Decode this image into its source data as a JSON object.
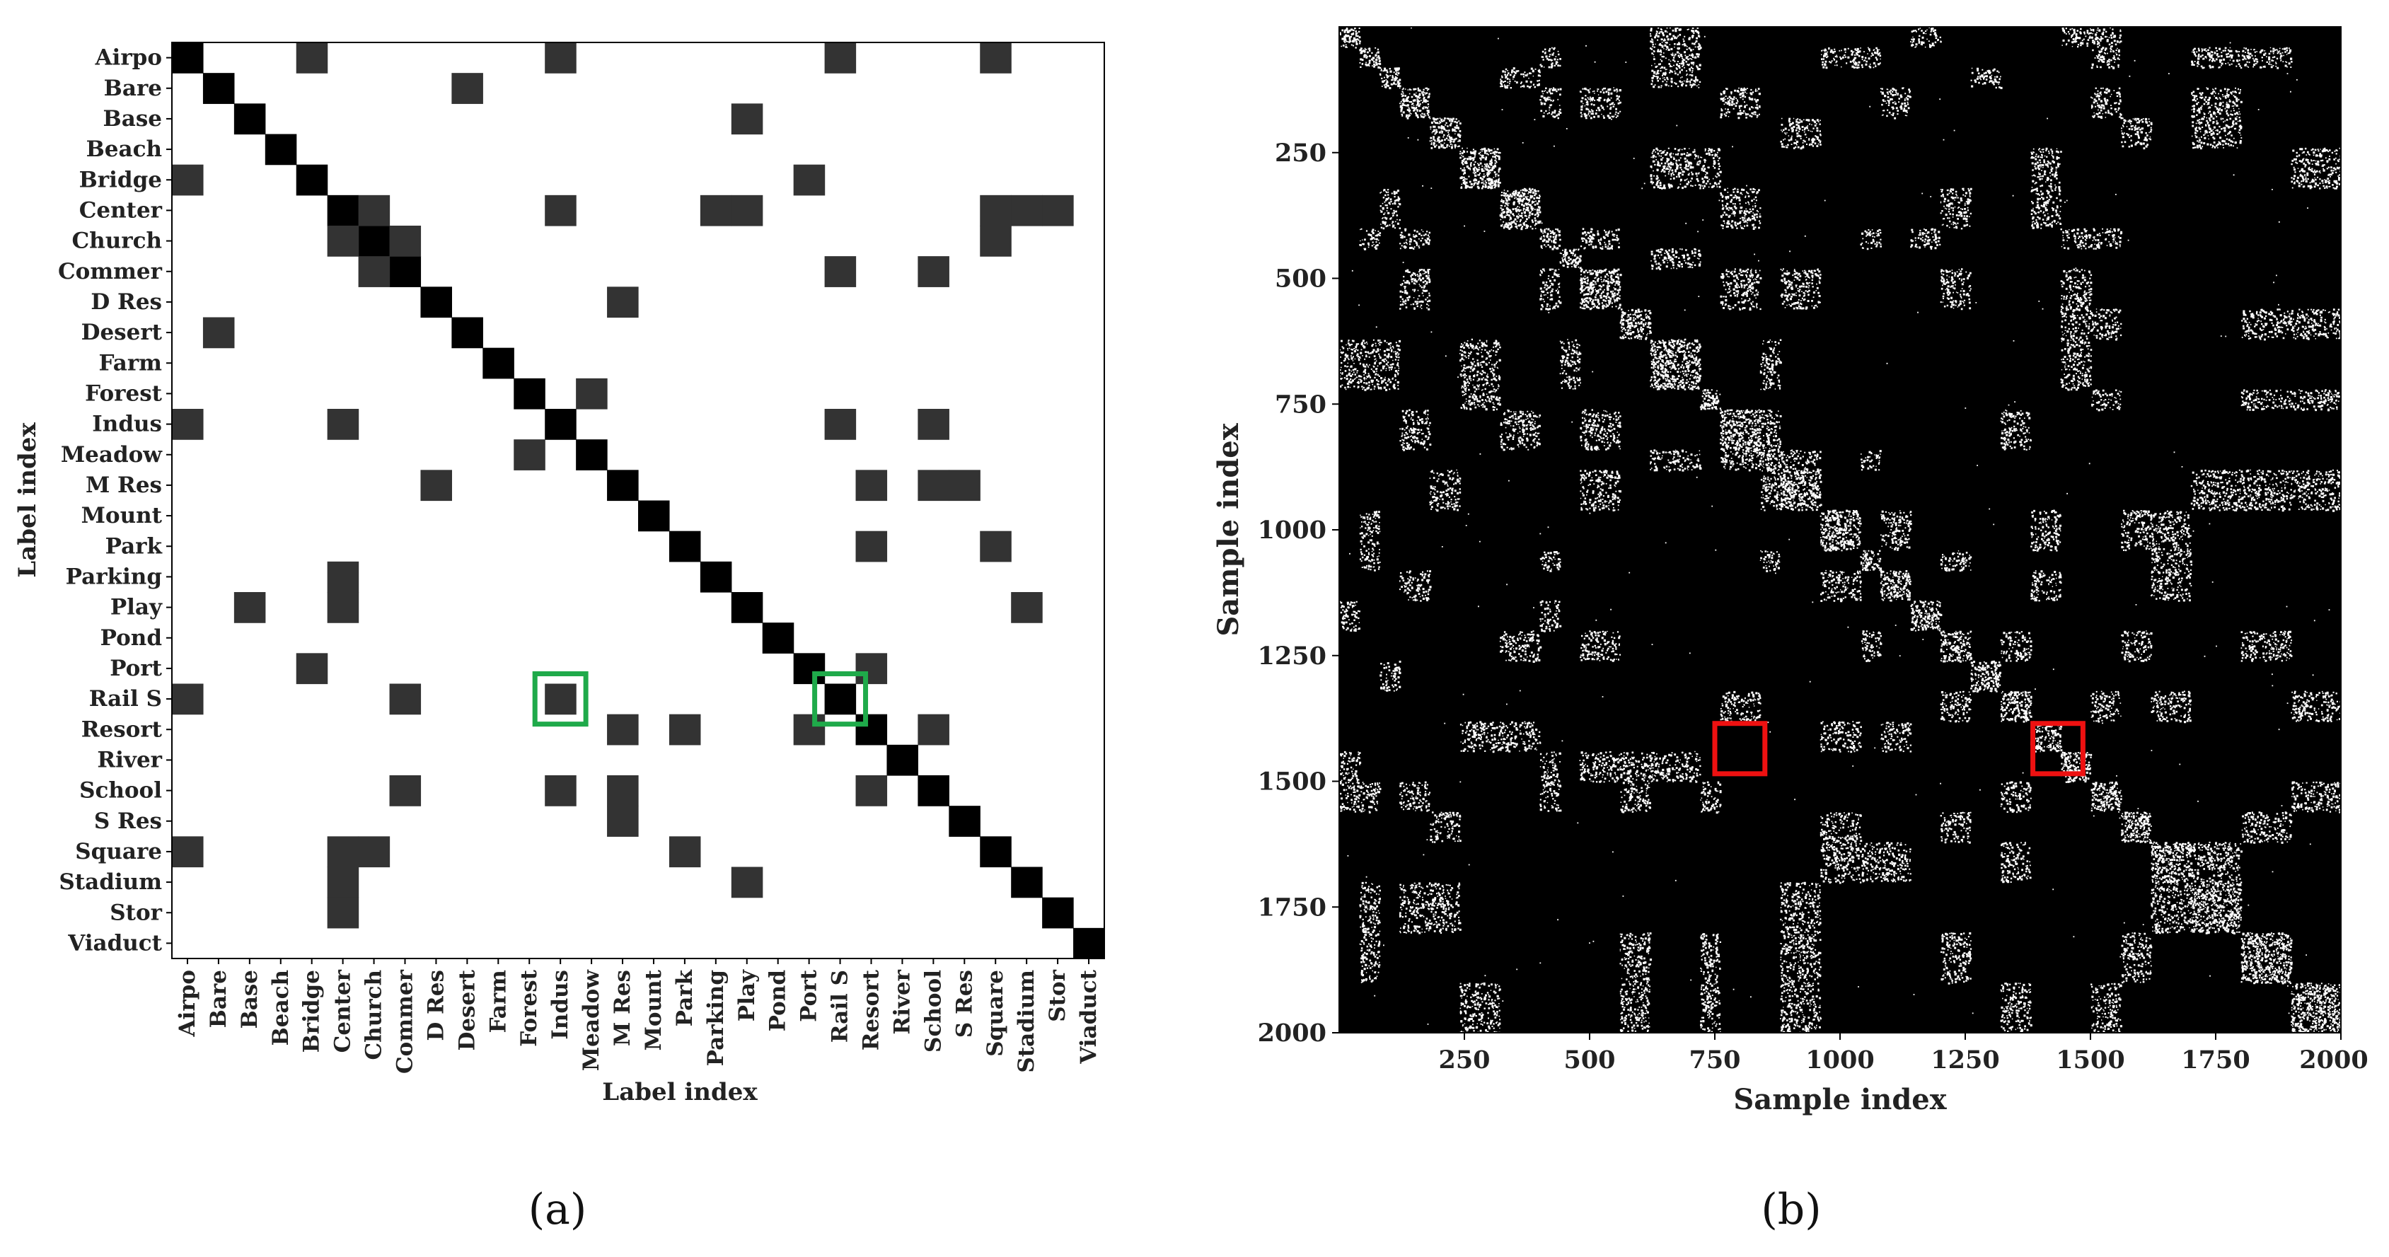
{
  "colors": {
    "diagonal": "#000000",
    "offdiag": "#333333",
    "matrix_bg": "#ffffff",
    "affinity_bg": "#000000",
    "affinity_points": "#ffffff",
    "highlight_a": "#1faa4a",
    "highlight_b": "#ee1111"
  },
  "panels": {
    "a": {
      "label": "(a)"
    },
    "b": {
      "label": "(b)"
    }
  },
  "chart_data": [
    {
      "type": "heatmap",
      "title": "",
      "xlabel": "Label index",
      "ylabel": "Label index",
      "labels": [
        "Airpo",
        "Bare",
        "Base",
        "Beach",
        "Bridge",
        "Center",
        "Church",
        "Commer",
        "D Res",
        "Desert",
        "Farm",
        "Forest",
        "Indus",
        "Meadow",
        "M Res",
        "Mount",
        "Park",
        "Parking",
        "Play",
        "Pond",
        "Port",
        "Rail S",
        "Resort",
        "River",
        "School",
        "S Res",
        "Square",
        "Stadium",
        "Stor",
        "Viaduct"
      ],
      "diagonal_value": 1,
      "offdiag_value": 0.8,
      "offdiag_cells": [
        [
          0,
          4
        ],
        [
          0,
          12
        ],
        [
          0,
          21
        ],
        [
          0,
          26
        ],
        [
          1,
          9
        ],
        [
          2,
          18
        ],
        [
          4,
          0
        ],
        [
          4,
          20
        ],
        [
          5,
          6
        ],
        [
          5,
          12
        ],
        [
          5,
          17
        ],
        [
          5,
          18
        ],
        [
          5,
          26
        ],
        [
          5,
          27
        ],
        [
          5,
          28
        ],
        [
          6,
          5
        ],
        [
          6,
          7
        ],
        [
          6,
          26
        ],
        [
          7,
          6
        ],
        [
          7,
          21
        ],
        [
          7,
          24
        ],
        [
          8,
          14
        ],
        [
          9,
          1
        ],
        [
          11,
          13
        ],
        [
          12,
          0
        ],
        [
          12,
          5
        ],
        [
          12,
          21
        ],
        [
          12,
          24
        ],
        [
          13,
          11
        ],
        [
          14,
          8
        ],
        [
          14,
          22
        ],
        [
          14,
          24
        ],
        [
          14,
          25
        ],
        [
          16,
          22
        ],
        [
          16,
          26
        ],
        [
          17,
          5
        ],
        [
          18,
          2
        ],
        [
          18,
          5
        ],
        [
          18,
          27
        ],
        [
          20,
          4
        ],
        [
          20,
          22
        ],
        [
          21,
          0
        ],
        [
          21,
          7
        ],
        [
          21,
          12
        ],
        [
          22,
          14
        ],
        [
          22,
          16
        ],
        [
          22,
          20
        ],
        [
          22,
          24
        ],
        [
          24,
          7
        ],
        [
          24,
          12
        ],
        [
          24,
          14
        ],
        [
          24,
          22
        ],
        [
          25,
          14
        ],
        [
          26,
          0
        ],
        [
          26,
          5
        ],
        [
          26,
          6
        ],
        [
          26,
          16
        ],
        [
          27,
          5
        ],
        [
          27,
          18
        ],
        [
          28,
          5
        ]
      ],
      "highlights": [
        [
          21,
          12
        ],
        [
          21,
          21
        ]
      ]
    },
    {
      "type": "heatmap",
      "title": "",
      "xlabel": "Sample index",
      "ylabel": "Sample index",
      "xlim": [
        0,
        2000
      ],
      "ylim": [
        0,
        2000
      ],
      "xticks": [
        250,
        500,
        750,
        1000,
        1250,
        1500,
        1750,
        2000
      ],
      "yticks": [
        250,
        500,
        750,
        1000,
        1250,
        1500,
        1750,
        2000
      ],
      "block_bounds": [
        0,
        40,
        80,
        120,
        180,
        240,
        320,
        400,
        440,
        480,
        560,
        620,
        720,
        760,
        840,
        880,
        960,
        1040,
        1080,
        1140,
        1200,
        1260,
        1320,
        1380,
        1440,
        1500,
        1560,
        1620,
        1700,
        1800,
        1900,
        2000
      ],
      "highlights": [
        {
          "x0": 750,
          "x1": 850,
          "y0": 1385,
          "y1": 1485
        },
        {
          "x0": 1385,
          "x1": 1485,
          "y0": 1385,
          "y1": 1485
        }
      ]
    }
  ]
}
